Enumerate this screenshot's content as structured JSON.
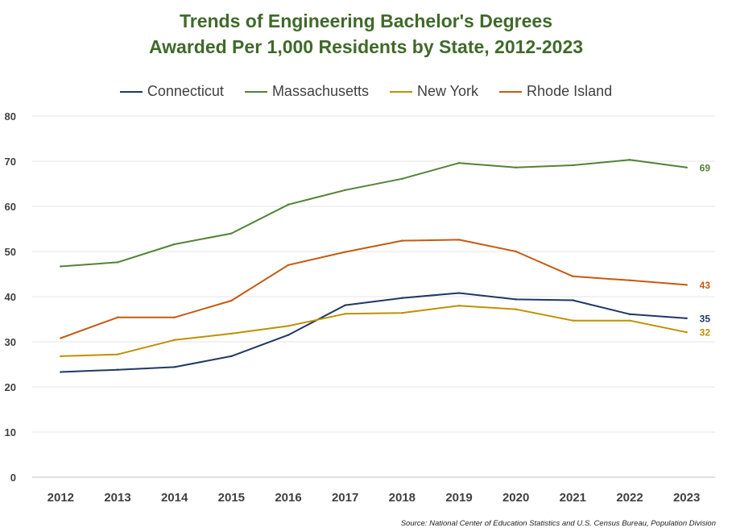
{
  "title_line1": "Trends of Engineering Bachelor's Degrees",
  "title_line2": "Awarded Per 1,000 Residents by State, 2012-2023",
  "source": "Source: National Center of Education Statistics and U.S. Census Bureau, Population Division",
  "chart_data": {
    "type": "line",
    "title": "Trends of Engineering Bachelor's Degrees Awarded Per 1,000 Residents by State, 2012-2023",
    "xlabel": "",
    "ylabel": "",
    "x": [
      "2012",
      "2013",
      "2014",
      "2015",
      "2016",
      "2017",
      "2018",
      "2019",
      "2020",
      "2021",
      "2022",
      "2023"
    ],
    "ylim": [
      0,
      80
    ],
    "yticks": [
      0,
      10,
      20,
      30,
      40,
      50,
      60,
      70,
      80
    ],
    "grid": true,
    "legend_position": "top",
    "series": [
      {
        "name": "Connecticut",
        "color": "#1f3864",
        "values": [
          23.3,
          23.8,
          24.4,
          26.8,
          31.5,
          38.1,
          39.7,
          40.8,
          39.4,
          39.2,
          36.1,
          35.2
        ],
        "end_label": "35"
      },
      {
        "name": "Massachusetts",
        "color": "#548235",
        "values": [
          46.7,
          47.6,
          51.6,
          54.0,
          60.4,
          63.6,
          66.1,
          69.6,
          68.6,
          69.1,
          70.3,
          68.6
        ],
        "end_label": "69"
      },
      {
        "name": "New York",
        "color": "#bf9000",
        "values": [
          26.8,
          27.2,
          30.4,
          31.8,
          33.5,
          36.2,
          36.4,
          38.0,
          37.2,
          34.7,
          34.7,
          32.1
        ],
        "end_label": "32"
      },
      {
        "name": "Rhode Island",
        "color": "#c55a11",
        "values": [
          30.8,
          35.4,
          35.4,
          39.1,
          47.0,
          49.9,
          52.4,
          52.6,
          50.0,
          44.5,
          43.6,
          42.6
        ],
        "end_label": "43"
      }
    ]
  }
}
